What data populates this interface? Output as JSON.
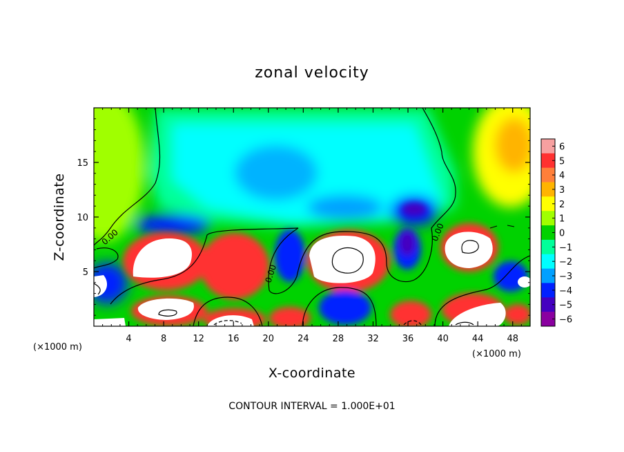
{
  "chart_data": {
    "type": "heatmap",
    "title": "zonal velocity",
    "xlabel": "X-coordinate",
    "ylabel": "Z-coordinate",
    "x_scale_label": "(×1000 m)",
    "x_scale_label_right": "(×1000 m)",
    "xlim": [
      0,
      50
    ],
    "ylim": [
      0,
      20
    ],
    "x_ticks": [
      "4",
      "8",
      "12",
      "16",
      "20",
      "24",
      "28",
      "32",
      "36",
      "40",
      "44",
      "48"
    ],
    "x_tick_values": [
      4,
      8,
      12,
      16,
      20,
      24,
      28,
      32,
      36,
      40,
      44,
      48
    ],
    "y_ticks": [
      "5",
      "10",
      "15"
    ],
    "y_tick_values": [
      5,
      10,
      15
    ],
    "colorbar": {
      "levels": [
        6,
        5,
        4,
        3,
        2,
        1,
        0,
        -1,
        -2,
        -3,
        -4,
        -5,
        -6
      ],
      "labels": [
        "6",
        "5",
        "4",
        "3",
        "2",
        "1",
        "0",
        "−1",
        "−2",
        "−3",
        "−4",
        "−5",
        "−6"
      ],
      "colors": [
        "#f7a0a0",
        "#ff3030",
        "#ff7f3a",
        "#ffb400",
        "#ffff00",
        "#a0ff00",
        "#00d200",
        "#00ff9a",
        "#00ffff",
        "#00a0ff",
        "#0020ff",
        "#4400c0",
        "#8a00a0"
      ]
    },
    "contour_labels": [
      "0.00",
      "0.00",
      "0.00"
    ],
    "contour_interval_text": "CONTOUR INTERVAL =  1.000E+01",
    "saturated_positive_color": "#ffffff"
  }
}
